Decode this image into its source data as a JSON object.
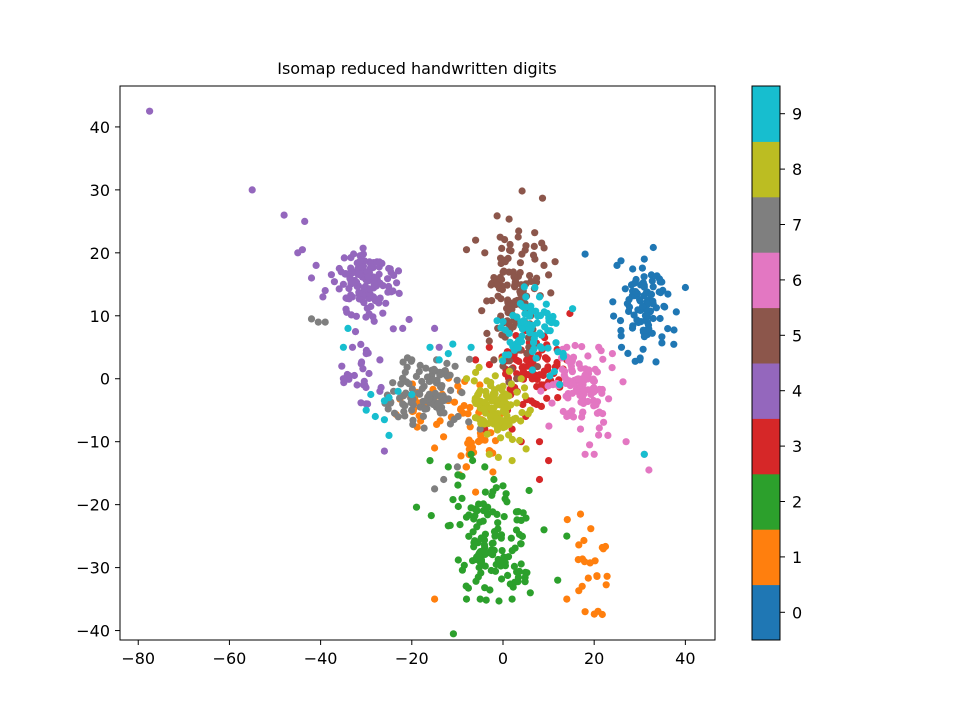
{
  "chart_data": {
    "type": "scatter",
    "title": "Isomap reduced handwritten digits",
    "xlabel": "",
    "ylabel": "",
    "xlim": [
      -84,
      46.5
    ],
    "ylim": [
      -41.5,
      46.5
    ],
    "xticks": [
      -80,
      -60,
      -40,
      -20,
      0,
      20,
      40
    ],
    "yticks": [
      -40,
      -30,
      -20,
      -10,
      0,
      10,
      20,
      30,
      40
    ],
    "grid": false,
    "colorbar": {
      "labels": [
        "0",
        "1",
        "2",
        "3",
        "4",
        "5",
        "6",
        "7",
        "8",
        "9"
      ],
      "colors": [
        "#1f77b4",
        "#ff7f0e",
        "#2ca02c",
        "#d62728",
        "#9467bd",
        "#8c564b",
        "#e377c2",
        "#7f7f7f",
        "#bcbd22",
        "#17becf"
      ]
    },
    "series": [
      {
        "label": "0",
        "clusters": [
          {
            "cx": 31,
            "cy": 10.5,
            "sx": 3.2,
            "sy": 4.2,
            "n": 95
          }
        ],
        "points": [
          [
            18,
            19.8
          ],
          [
            25,
            18
          ],
          [
            40,
            14.5
          ],
          [
            31,
            19
          ],
          [
            26,
            5
          ],
          [
            30,
            3
          ]
        ]
      },
      {
        "label": "1",
        "clusters": [
          {
            "cx": -14,
            "cy": -4,
            "sx": 4,
            "sy": 2.5,
            "n": 45
          },
          {
            "cx": -5,
            "cy": -9,
            "sx": 2.5,
            "sy": 3,
            "n": 35
          },
          {
            "cx": 20,
            "cy": -30,
            "sx": 2,
            "sy": 4,
            "n": 22
          }
        ],
        "points": [
          [
            -15,
            -11
          ],
          [
            -8,
            -14
          ],
          [
            -6,
            -18
          ],
          [
            17,
            -21.5
          ],
          [
            14,
            -35
          ],
          [
            18,
            -37
          ],
          [
            -15,
            -35
          ]
        ]
      },
      {
        "label": "2",
        "clusters": [
          {
            "cx": -3,
            "cy": -27,
            "sx": 4,
            "sy": 4.5,
            "n": 130
          }
        ],
        "points": [
          [
            -16,
            -13
          ],
          [
            -12,
            -14
          ],
          [
            -9,
            -15.5
          ],
          [
            -9,
            -19
          ],
          [
            -7,
            -20.5
          ],
          [
            -8,
            -22
          ],
          [
            4,
            -22.5
          ],
          [
            9,
            -24
          ],
          [
            14,
            -25
          ],
          [
            12,
            -32
          ],
          [
            6,
            -34
          ],
          [
            -8,
            -35
          ],
          [
            -5,
            -35
          ],
          [
            2,
            -35
          ],
          [
            -7,
            -12
          ],
          [
            -4,
            -14
          ],
          [
            -2,
            -16
          ],
          [
            0,
            -17
          ]
        ]
      },
      {
        "label": "3",
        "clusters": [
          {
            "cx": 6,
            "cy": 2,
            "sx": 3.5,
            "sy": 3,
            "n": 95
          }
        ],
        "points": [
          [
            1,
            -5
          ],
          [
            2,
            -8
          ],
          [
            4,
            -10
          ],
          [
            5,
            -6
          ],
          [
            8,
            -10
          ],
          [
            10,
            -13
          ],
          [
            8,
            -16
          ],
          [
            14,
            3
          ],
          [
            12,
            -3
          ],
          [
            -3,
            5
          ],
          [
            -6,
            3
          ],
          [
            -4,
            -8
          ]
        ]
      },
      {
        "label": "4",
        "clusters": [
          {
            "cx": -30,
            "cy": 15,
            "sx": 3.5,
            "sy": 3,
            "n": 120
          },
          {
            "cx": -31,
            "cy": 1,
            "sx": 2,
            "sy": 2.5,
            "n": 20
          }
        ],
        "points": [
          [
            -77.5,
            42.5
          ],
          [
            -55,
            30
          ],
          [
            -48,
            26
          ],
          [
            -43.5,
            25
          ],
          [
            -44,
            20.5
          ],
          [
            -45,
            20
          ],
          [
            -41,
            18
          ],
          [
            -42,
            16
          ],
          [
            -39,
            14
          ],
          [
            -39.5,
            13
          ],
          [
            -35,
            15
          ],
          [
            -33,
            5
          ],
          [
            -35,
            0
          ],
          [
            -32,
            -1
          ],
          [
            -30,
            -4
          ],
          [
            -27,
            -2
          ],
          [
            -14,
            5
          ],
          [
            -22,
            8
          ],
          [
            -15,
            8
          ],
          [
            -26,
            -11.5
          ],
          [
            -30,
            4
          ],
          [
            -27,
            3
          ]
        ]
      },
      {
        "label": "5",
        "clusters": [
          {
            "cx": 2,
            "cy": 14,
            "sx": 3,
            "sy": 5,
            "n": 120
          }
        ],
        "points": [
          [
            -8,
            20.5
          ],
          [
            -6,
            22
          ],
          [
            -4,
            20
          ],
          [
            7,
            19
          ],
          [
            9,
            18
          ],
          [
            10,
            16.5
          ],
          [
            -3,
            6
          ],
          [
            -2,
            3
          ],
          [
            0,
            2
          ],
          [
            3,
            0
          ]
        ]
      },
      {
        "label": "6",
        "clusters": [
          {
            "cx": 17,
            "cy": -1.5,
            "sx": 3,
            "sy": 3,
            "n": 105
          }
        ],
        "points": [
          [
            14,
            -6
          ],
          [
            17,
            -8
          ],
          [
            19,
            -10.5
          ],
          [
            23,
            -9
          ],
          [
            27,
            -10
          ],
          [
            31,
            -12
          ],
          [
            32,
            -14.5
          ],
          [
            20,
            -12
          ],
          [
            18,
            -12
          ],
          [
            15,
            2
          ],
          [
            14,
            5
          ],
          [
            21,
            5
          ],
          [
            24,
            4
          ]
        ]
      },
      {
        "label": "7",
        "clusters": [
          {
            "cx": -16,
            "cy": -2,
            "sx": 3.5,
            "sy": 3,
            "n": 110
          }
        ],
        "points": [
          [
            -42,
            9.5
          ],
          [
            -40.5,
            9
          ],
          [
            -39,
            9
          ],
          [
            -15,
            -17.5
          ],
          [
            -13,
            -16
          ],
          [
            -10,
            -14
          ],
          [
            -5,
            -8
          ],
          [
            -22,
            -4
          ],
          [
            -24,
            -2
          ],
          [
            -20,
            3
          ]
        ]
      },
      {
        "label": "8",
        "clusters": [
          {
            "cx": -1,
            "cy": -4,
            "sx": 3,
            "sy": 2.5,
            "n": 110
          }
        ],
        "points": [
          [
            -3,
            -12
          ],
          [
            -1,
            -12.5
          ],
          [
            2,
            -13
          ],
          [
            -8,
            0
          ],
          [
            -6,
            1
          ],
          [
            4,
            0
          ],
          [
            6,
            -5
          ]
        ]
      },
      {
        "label": "9",
        "clusters": [
          {
            "cx": 6,
            "cy": 8,
            "sx": 3,
            "sy": 3.5,
            "n": 80
          }
        ],
        "points": [
          [
            -20,
            -2.5
          ],
          [
            -23,
            -2
          ],
          [
            -25,
            -3
          ],
          [
            -26,
            -3.5
          ],
          [
            -29,
            -2.5
          ],
          [
            -30,
            -5
          ],
          [
            -28,
            -6
          ],
          [
            -26,
            -6.5
          ],
          [
            -25,
            -9
          ],
          [
            -16,
            5
          ],
          [
            -12,
            4
          ],
          [
            -11,
            5.5
          ],
          [
            -14,
            3
          ],
          [
            -7,
            5
          ],
          [
            8,
            13
          ],
          [
            7,
            14.5
          ],
          [
            5,
            13
          ],
          [
            -34,
            8
          ],
          [
            -35,
            5
          ],
          [
            31,
            -12
          ]
        ]
      }
    ]
  }
}
